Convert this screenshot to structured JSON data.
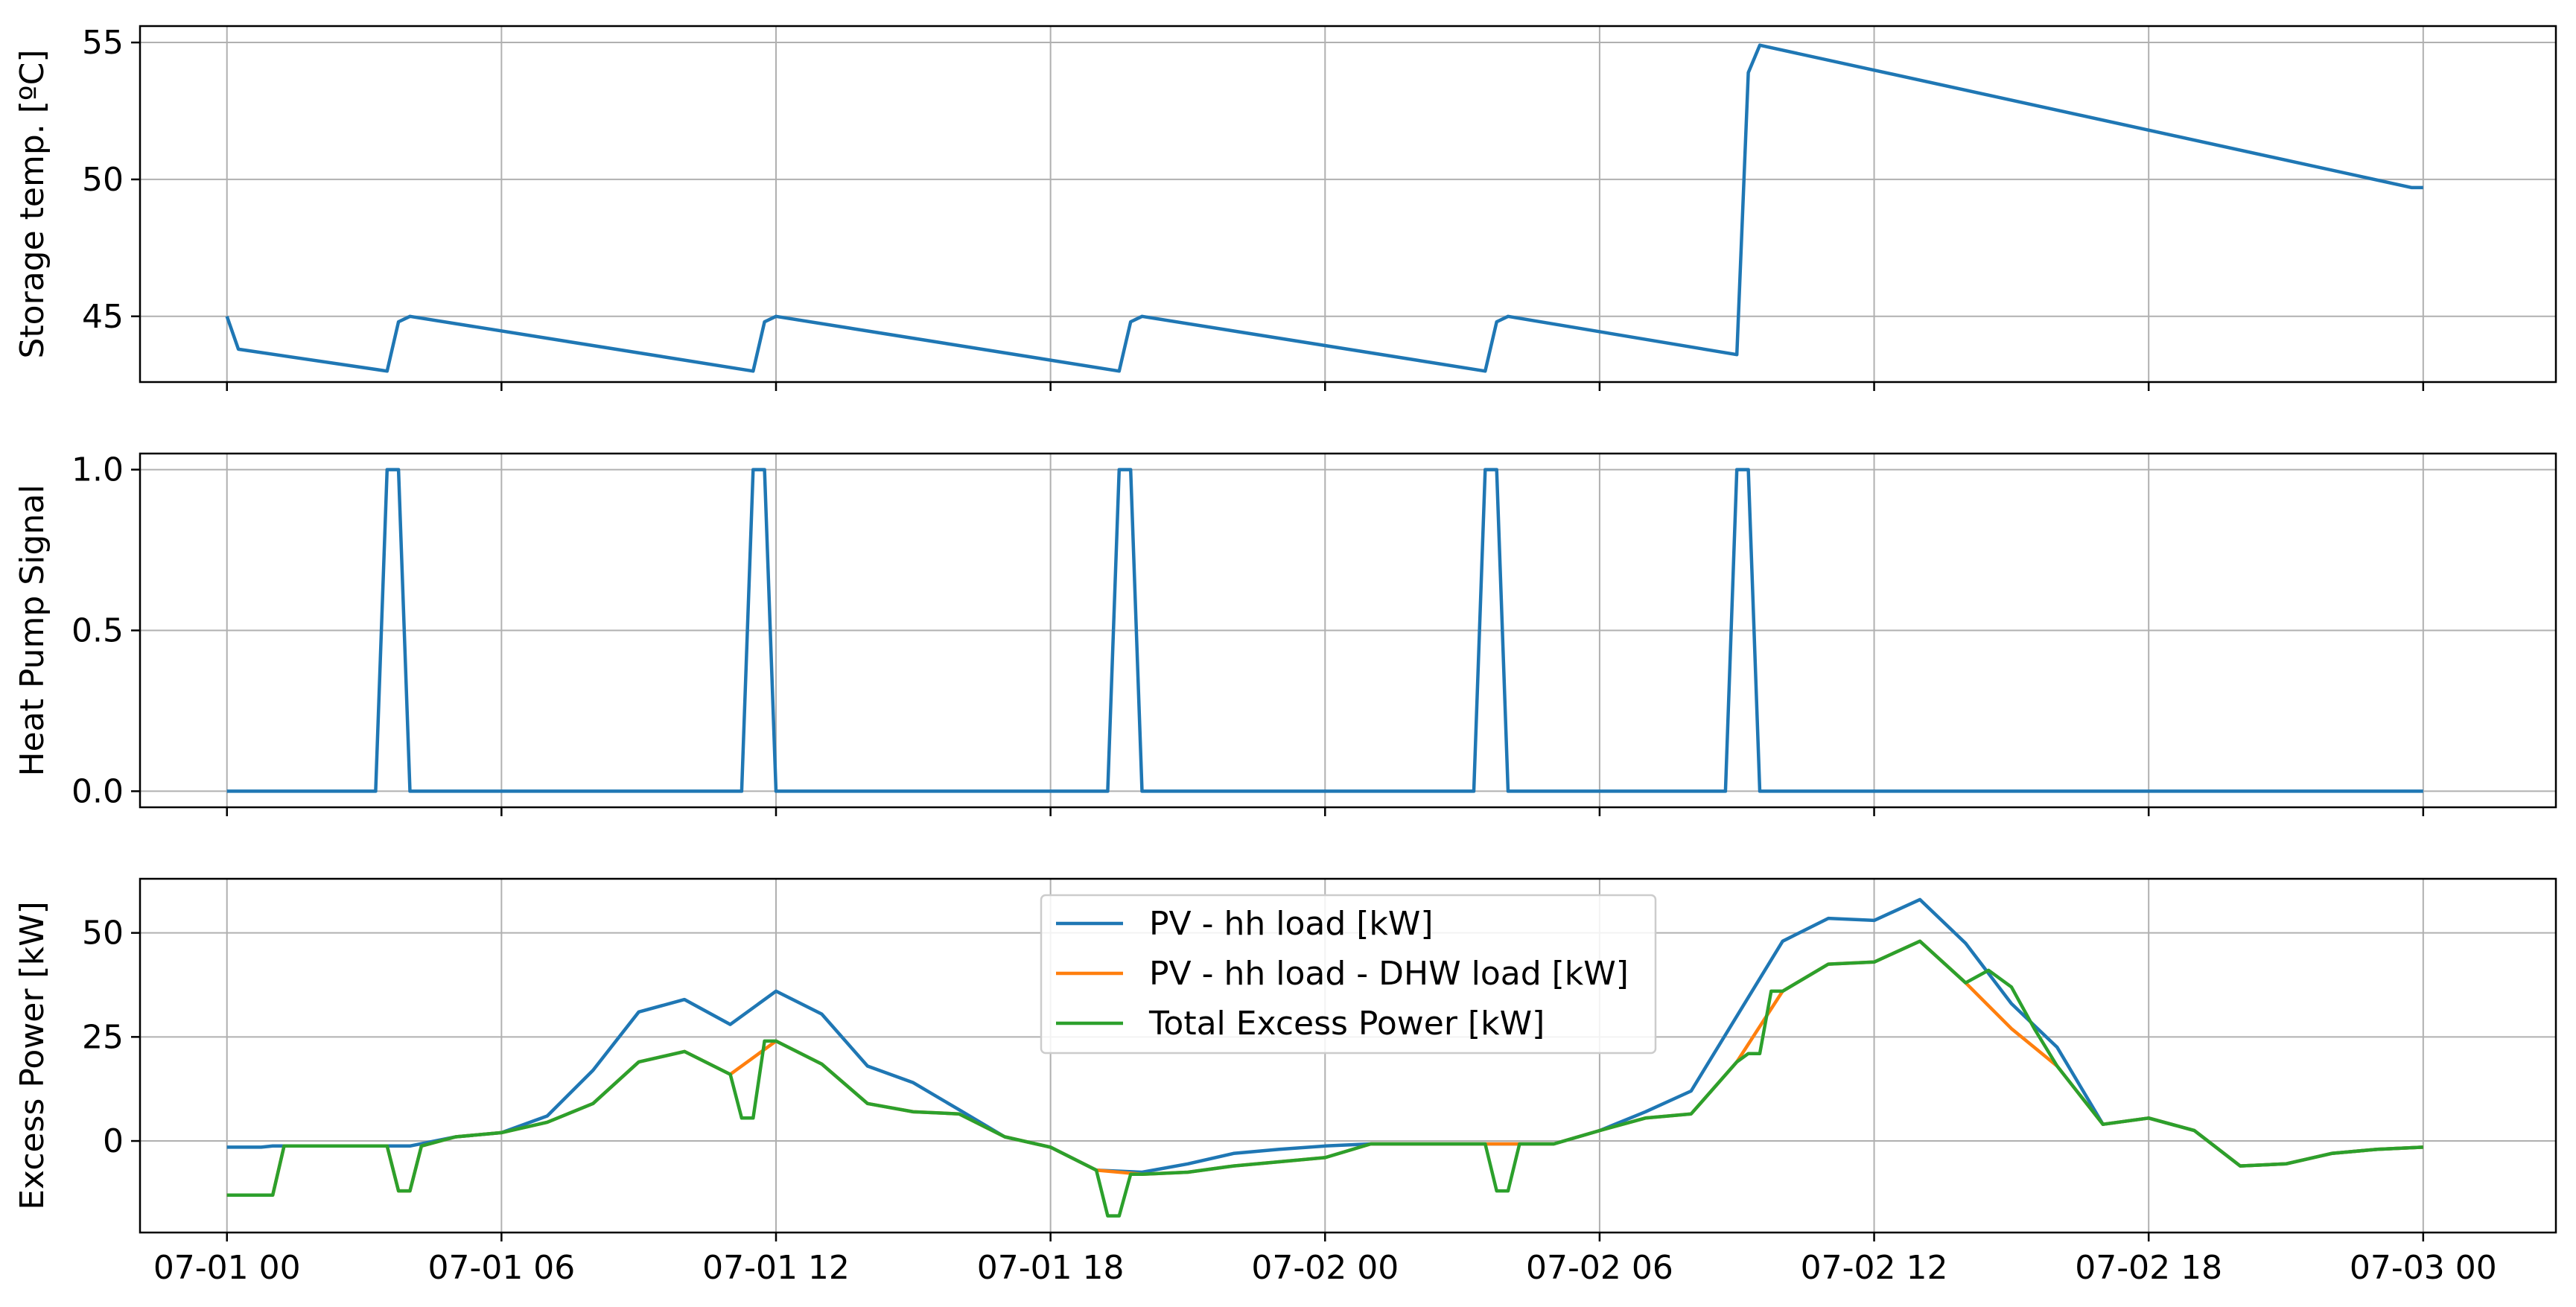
{
  "chart_data": [
    {
      "type": "line",
      "ylabel": "Storage temp. [ºC]",
      "xlim": [
        -1.9,
        50.9
      ],
      "ylim": [
        42.6,
        55.6
      ],
      "yticks": [
        "45",
        "50",
        "55"
      ],
      "ytick_values": [
        45,
        50,
        55
      ],
      "grid": true,
      "series": [
        {
          "color": "#1f77b4",
          "points": [
            [
              0,
              45.0
            ],
            [
              0.25,
              43.8
            ],
            [
              3.5,
              43.0
            ],
            [
              3.75,
              44.8
            ],
            [
              4,
              45.0
            ],
            [
              11.5,
              43.0
            ],
            [
              11.75,
              44.8
            ],
            [
              12,
              45.0
            ],
            [
              19.5,
              43.0
            ],
            [
              19.75,
              44.8
            ],
            [
              20,
              45.0
            ],
            [
              27.5,
              43.0
            ],
            [
              27.75,
              44.8
            ],
            [
              28,
              45.0
            ],
            [
              33,
              43.6
            ],
            [
              33.25,
              53.9
            ],
            [
              33.5,
              54.9
            ],
            [
              47.75,
              49.7
            ],
            [
              48,
              49.7
            ]
          ]
        }
      ]
    },
    {
      "type": "line",
      "ylabel": "Heat Pump Signal",
      "xlim": [
        -1.9,
        50.9
      ],
      "ylim": [
        -0.05,
        1.05
      ],
      "yticks": [
        "0.0",
        "0.5",
        "1.0"
      ],
      "ytick_values": [
        0,
        0.5,
        1
      ],
      "grid": true,
      "series": [
        {
          "color": "#1f77b4",
          "points": [
            [
              0,
              0
            ],
            [
              3.25,
              0
            ],
            [
              3.5,
              1
            ],
            [
              3.75,
              1
            ],
            [
              4,
              0
            ],
            [
              11.25,
              0
            ],
            [
              11.5,
              1
            ],
            [
              11.75,
              1
            ],
            [
              12,
              0
            ],
            [
              19.25,
              0
            ],
            [
              19.5,
              1
            ],
            [
              19.75,
              1
            ],
            [
              20,
              0
            ],
            [
              27.25,
              0
            ],
            [
              27.5,
              1
            ],
            [
              27.75,
              1
            ],
            [
              28,
              0
            ],
            [
              32.75,
              0
            ],
            [
              33,
              1
            ],
            [
              33.25,
              1
            ],
            [
              33.5,
              0
            ],
            [
              48,
              0
            ]
          ]
        }
      ]
    },
    {
      "type": "line",
      "ylabel": "Excess Power [kW]",
      "xlim": [
        -1.9,
        50.9
      ],
      "ylim": [
        -22,
        63
      ],
      "yticks": [
        "0",
        "25",
        "50"
      ],
      "ytick_values": [
        0,
        25,
        50
      ],
      "grid": true,
      "legend_position": "top-center",
      "series": [
        {
          "name": "PV - hh load [kW]",
          "color": "#1f77b4",
          "points": [
            [
              0,
              -1.5
            ],
            [
              0.75,
              -1.5
            ],
            [
              1,
              -1.2
            ],
            [
              4,
              -1.2
            ],
            [
              5,
              1
            ],
            [
              6,
              2
            ],
            [
              7,
              6
            ],
            [
              8,
              17
            ],
            [
              9,
              31
            ],
            [
              10,
              34
            ],
            [
              11,
              28
            ],
            [
              12,
              36
            ],
            [
              13,
              30.5
            ],
            [
              14,
              18
            ],
            [
              15,
              14
            ],
            [
              16,
              7.5
            ],
            [
              17,
              1
            ],
            [
              18,
              -1.5
            ],
            [
              19,
              -7
            ],
            [
              20,
              -7.5
            ],
            [
              21,
              -5.5
            ],
            [
              22,
              -3
            ],
            [
              23,
              -2
            ],
            [
              24,
              -1.2
            ],
            [
              25,
              -0.7
            ],
            [
              29,
              -0.7
            ],
            [
              30,
              2.5
            ],
            [
              31,
              7
            ],
            [
              32,
              12
            ],
            [
              33,
              30
            ],
            [
              34,
              48
            ],
            [
              35,
              53.5
            ],
            [
              36,
              53
            ],
            [
              37,
              58
            ],
            [
              38,
              47.5
            ],
            [
              39,
              33
            ],
            [
              40,
              22.5
            ],
            [
              41,
              4
            ],
            [
              42,
              5.5
            ],
            [
              43,
              2.5
            ],
            [
              44,
              -6
            ],
            [
              45,
              -5.5
            ],
            [
              46,
              -3
            ],
            [
              47,
              -2
            ],
            [
              48,
              -1.5
            ]
          ]
        },
        {
          "name": "PV - hh load - DHW load [kW]",
          "color": "#ff7f0e",
          "points": [
            [
              0,
              -13
            ],
            [
              1,
              -13
            ],
            [
              1.25,
              -1.2
            ],
            [
              3.5,
              -1.2
            ],
            [
              3.75,
              -12
            ],
            [
              4,
              -12
            ],
            [
              4.25,
              -1.2
            ],
            [
              5,
              1
            ],
            [
              6,
              2
            ],
            [
              7,
              4.5
            ],
            [
              8,
              9
            ],
            [
              9,
              19
            ],
            [
              10,
              21.5
            ],
            [
              11,
              16
            ],
            [
              12,
              24
            ],
            [
              13,
              18.5
            ],
            [
              14,
              9
            ],
            [
              15,
              7
            ],
            [
              16,
              6.5
            ],
            [
              17,
              1
            ],
            [
              18,
              -1.5
            ],
            [
              19,
              -7
            ],
            [
              20,
              -8
            ],
            [
              21,
              -7.5
            ],
            [
              22,
              -6
            ],
            [
              23,
              -5
            ],
            [
              24,
              -4
            ],
            [
              25,
              -0.7
            ],
            [
              29,
              -0.7
            ],
            [
              30,
              2.5
            ],
            [
              31,
              5.5
            ],
            [
              32,
              6.5
            ],
            [
              33,
              19
            ],
            [
              34,
              36
            ],
            [
              35,
              42.5
            ],
            [
              36,
              43
            ],
            [
              37,
              48
            ],
            [
              38,
              38
            ],
            [
              39,
              27
            ],
            [
              40,
              18
            ],
            [
              41,
              4
            ],
            [
              42,
              5.5
            ],
            [
              43,
              2.5
            ],
            [
              44,
              -6
            ],
            [
              45,
              -5.5
            ],
            [
              46,
              -3
            ],
            [
              47,
              -2
            ],
            [
              48,
              -1.5
            ]
          ]
        },
        {
          "name": "Total Excess Power [kW]",
          "color": "#2ca02c",
          "points": [
            [
              0,
              -13
            ],
            [
              1,
              -13
            ],
            [
              1.25,
              -1.2
            ],
            [
              3.5,
              -1.2
            ],
            [
              3.75,
              -12
            ],
            [
              4,
              -12
            ],
            [
              4.25,
              -1.2
            ],
            [
              5,
              1
            ],
            [
              6,
              2
            ],
            [
              7,
              4.5
            ],
            [
              8,
              9
            ],
            [
              9,
              19
            ],
            [
              10,
              21.5
            ],
            [
              11,
              16
            ],
            [
              11.25,
              5.5
            ],
            [
              11.5,
              5.5
            ],
            [
              11.75,
              24
            ],
            [
              12,
              24
            ],
            [
              13,
              18.5
            ],
            [
              14,
              9
            ],
            [
              15,
              7
            ],
            [
              16,
              6.5
            ],
            [
              17,
              1
            ],
            [
              18,
              -1.5
            ],
            [
              19,
              -7
            ],
            [
              19.25,
              -18
            ],
            [
              19.5,
              -18
            ],
            [
              19.75,
              -8
            ],
            [
              20,
              -8
            ],
            [
              21,
              -7.5
            ],
            [
              22,
              -6
            ],
            [
              23,
              -5
            ],
            [
              24,
              -4
            ],
            [
              25,
              -0.7
            ],
            [
              27.5,
              -0.7
            ],
            [
              27.75,
              -12
            ],
            [
              28,
              -12
            ],
            [
              28.25,
              -0.7
            ],
            [
              29,
              -0.7
            ],
            [
              30,
              2.5
            ],
            [
              31,
              5.5
            ],
            [
              32,
              6.5
            ],
            [
              33,
              19
            ],
            [
              33.25,
              21
            ],
            [
              33.5,
              21
            ],
            [
              33.75,
              36
            ],
            [
              34,
              36
            ],
            [
              35,
              42.5
            ],
            [
              36,
              43
            ],
            [
              37,
              48
            ],
            [
              38,
              38
            ],
            [
              38.5,
              41
            ],
            [
              39,
              37
            ],
            [
              39.5,
              27
            ],
            [
              40,
              18
            ],
            [
              41,
              4
            ],
            [
              42,
              5.5
            ],
            [
              43,
              2.5
            ],
            [
              44,
              -6
            ],
            [
              45,
              -5.5
            ],
            [
              46,
              -3
            ],
            [
              47,
              -2
            ],
            [
              48,
              -1.5
            ]
          ]
        }
      ]
    }
  ],
  "xticks": [
    "07-01 00",
    "07-01 06",
    "07-01 12",
    "07-01 18",
    "07-02 00",
    "07-02 06",
    "07-02 12",
    "07-02 18",
    "07-03 00"
  ],
  "xtick_values": [
    0,
    6,
    12,
    18,
    24,
    30,
    36,
    42,
    48
  ]
}
